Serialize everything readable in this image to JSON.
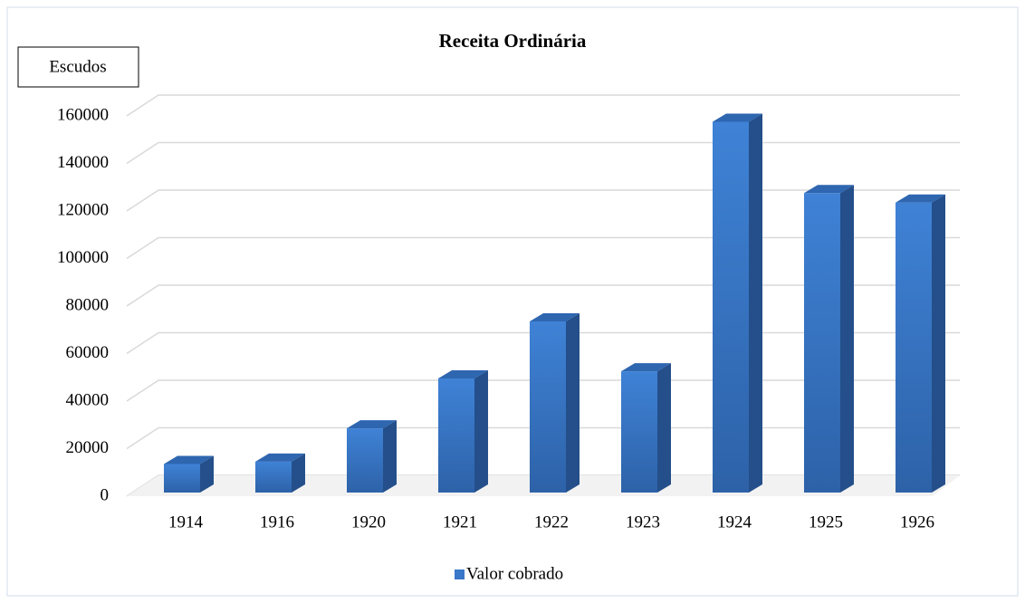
{
  "chart_data": {
    "type": "bar",
    "title": "Receita Ordinária",
    "y_label": "Escudos",
    "categories": [
      "1914",
      "1916",
      "1920",
      "1921",
      "1922",
      "1923",
      "1924",
      "1925",
      "1926"
    ],
    "series": [
      {
        "name": "Valor cobrado",
        "color": "#3a78c9",
        "values": [
          12000,
          13000,
          27000,
          48000,
          72000,
          51000,
          156000,
          126000,
          122000
        ]
      }
    ],
    "ylim": [
      0,
      160000
    ],
    "yticks": [
      0,
      20000,
      40000,
      60000,
      80000,
      100000,
      120000,
      140000,
      160000
    ],
    "grid": true,
    "legend": "bottom"
  }
}
